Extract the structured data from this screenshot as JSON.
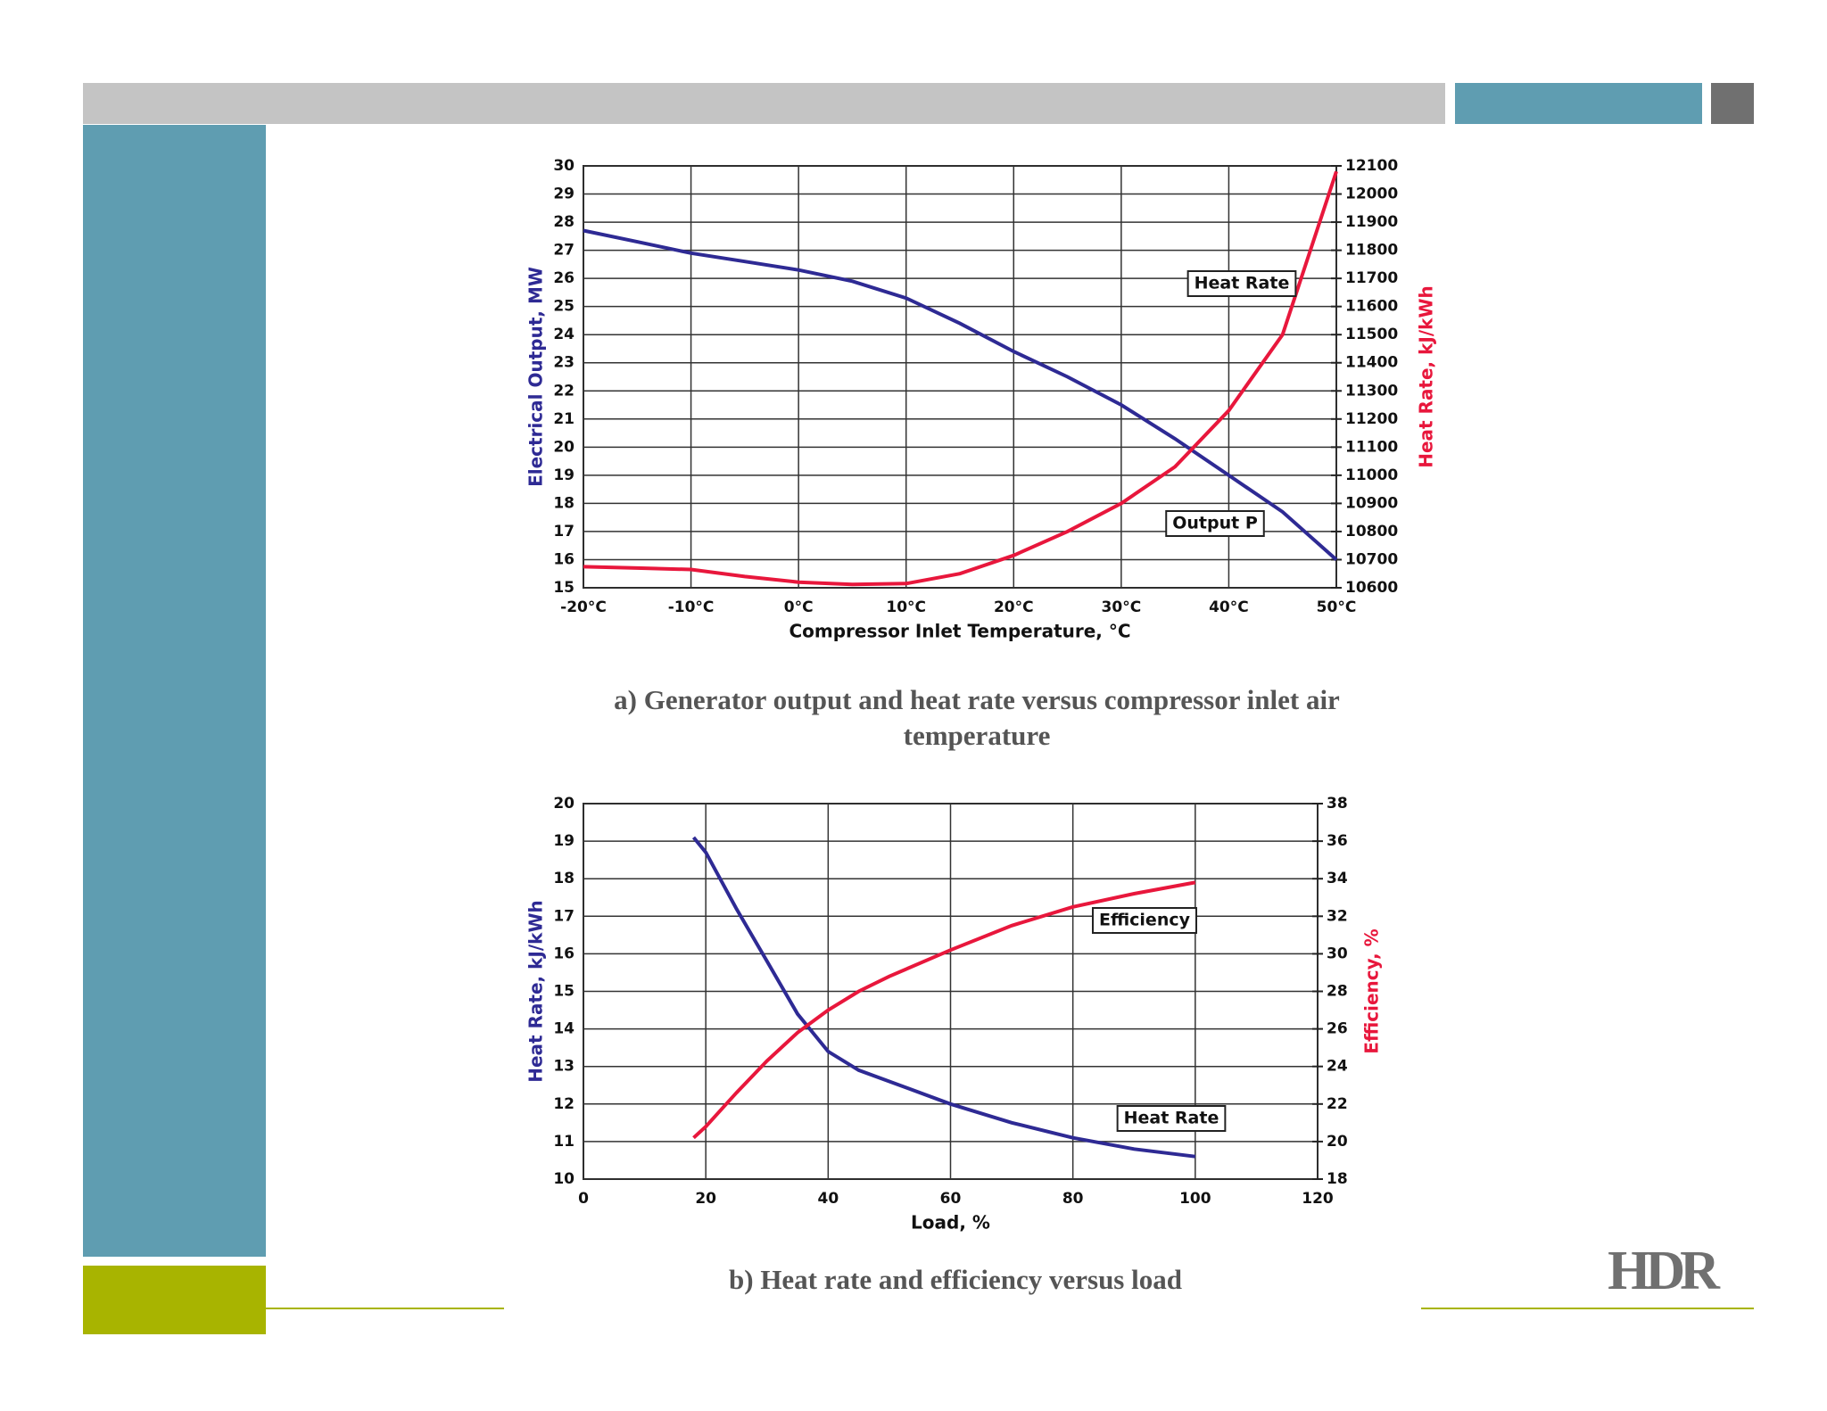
{
  "logo": "HDR",
  "chart_data": [
    {
      "type": "line",
      "caption": "a) Generator output and heat rate versus compressor inlet air temperature",
      "xlabel": "Compressor Inlet Temperature, °C",
      "ylabel": "Electrical Output, MW",
      "y2label": "Heat Rate, kJ/kWh",
      "x": [
        -20,
        -15,
        -10,
        -5,
        0,
        5,
        10,
        15,
        20,
        25,
        30,
        35,
        40,
        45,
        50
      ],
      "xlim": [
        -20,
        50
      ],
      "xticks": [
        {
          "value": -20,
          "label": "-20°C"
        },
        {
          "value": -10,
          "label": "-10°C"
        },
        {
          "value": 0,
          "label": "0°C"
        },
        {
          "value": 10,
          "label": "10°C"
        },
        {
          "value": 20,
          "label": "20°C"
        },
        {
          "value": 30,
          "label": "30°C"
        },
        {
          "value": 40,
          "label": "40°C"
        },
        {
          "value": 50,
          "label": "50°C"
        }
      ],
      "ylim": [
        15,
        30
      ],
      "yticks": [
        15,
        16,
        17,
        18,
        19,
        20,
        21,
        22,
        23,
        24,
        25,
        26,
        27,
        28,
        29,
        30
      ],
      "y2lim": [
        10600,
        12100
      ],
      "y2ticks": [
        10600,
        10700,
        10800,
        10900,
        11000,
        11100,
        11200,
        11300,
        11400,
        11500,
        11600,
        11700,
        11800,
        11900,
        12000,
        12100
      ],
      "grid": true,
      "series": [
        {
          "name": "Output P",
          "color": "#2e2a94",
          "values": [
            27.7,
            27.3,
            26.9,
            26.6,
            26.3,
            25.9,
            25.3,
            24.4,
            23.4,
            22.5,
            21.5,
            20.3,
            19.0,
            17.7,
            16.0
          ]
        },
        {
          "name": "Heat Rate",
          "color": "#e8173c",
          "axis": "y2",
          "values": [
            10675,
            10670,
            10665,
            10640,
            10620,
            10612,
            10615,
            10650,
            10715,
            10800,
            10900,
            11030,
            11230,
            11500,
            12080
          ]
        }
      ]
    },
    {
      "type": "line",
      "caption": "b) Heat rate and efficiency versus load",
      "xlabel": "Load, %",
      "ylabel": "Heat Rate, kJ/kWh",
      "y2label": "Efficiency, %",
      "x": [
        18,
        20,
        25,
        30,
        35,
        40,
        45,
        50,
        60,
        70,
        80,
        90,
        100
      ],
      "xlim": [
        0,
        120
      ],
      "xticks": [
        0,
        20,
        40,
        60,
        80,
        100,
        120
      ],
      "ylim": [
        10,
        20
      ],
      "yticks": [
        10,
        11,
        12,
        13,
        14,
        15,
        16,
        17,
        18,
        19,
        20
      ],
      "y2lim": [
        18,
        38
      ],
      "y2ticks": [
        18,
        20,
        22,
        24,
        26,
        28,
        30,
        32,
        34,
        36,
        38
      ],
      "grid": true,
      "series": [
        {
          "name": "Heat Rate",
          "color": "#2e2a94",
          "values": [
            19.1,
            18.7,
            17.2,
            15.8,
            14.4,
            13.4,
            12.9,
            12.6,
            12.0,
            11.5,
            11.1,
            10.8,
            10.6
          ]
        },
        {
          "name": "Efficiency",
          "color": "#e8173c",
          "axis": "y2",
          "values": [
            20.2,
            20.8,
            22.6,
            24.3,
            25.8,
            27.0,
            28.0,
            28.8,
            30.2,
            31.5,
            32.5,
            33.2,
            33.8
          ]
        }
      ]
    }
  ]
}
